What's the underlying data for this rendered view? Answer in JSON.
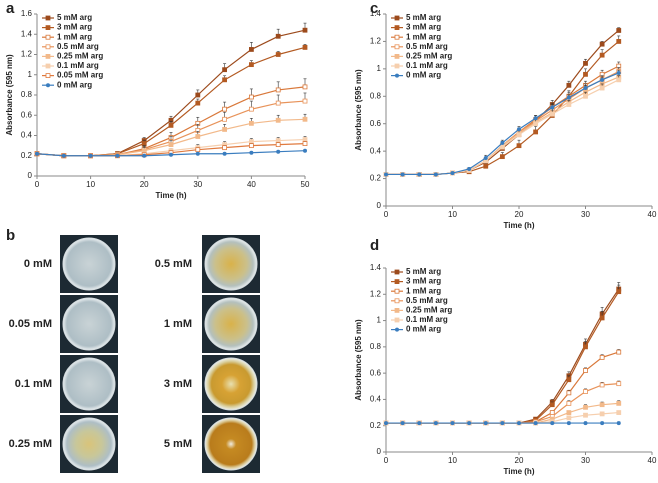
{
  "chart_data": [
    {
      "type": "line",
      "panel_label": "a",
      "x_label": "Time (h)",
      "y_label": "Absorbance (595 nm)",
      "xlim": [
        0,
        50
      ],
      "xticks": [
        0,
        10,
        20,
        30,
        40,
        50
      ],
      "ylim": [
        0,
        1.6
      ],
      "yticks": [
        0,
        0.2,
        0.4,
        0.6,
        0.8,
        1,
        1.2,
        1.4,
        1.6
      ],
      "x": [
        0,
        5,
        10,
        15,
        20,
        25,
        30,
        35,
        40,
        45,
        50
      ],
      "series": [
        {
          "name": "5 mM arg",
          "color": "#9c4a1c",
          "marker": "square",
          "values": [
            0.22,
            0.2,
            0.2,
            0.22,
            0.35,
            0.55,
            0.8,
            1.05,
            1.25,
            1.38,
            1.44
          ],
          "errors": [
            0.01,
            0.01,
            0.01,
            0.02,
            0.03,
            0.04,
            0.05,
            0.06,
            0.07,
            0.07,
            0.07
          ]
        },
        {
          "name": "3 mM arg",
          "color": "#b35a22",
          "marker": "square",
          "values": [
            0.22,
            0.2,
            0.2,
            0.22,
            0.32,
            0.5,
            0.72,
            0.95,
            1.1,
            1.2,
            1.27
          ],
          "errors": [
            0.01,
            0.01,
            0.01,
            0.02,
            0.03,
            0.04,
            0.04,
            0.04,
            0.04,
            0.03,
            0.03
          ]
        },
        {
          "name": "1 mM arg",
          "color": "#d9783a",
          "marker": "open-square",
          "values": [
            0.22,
            0.2,
            0.2,
            0.21,
            0.27,
            0.38,
            0.52,
            0.66,
            0.78,
            0.85,
            0.88
          ],
          "errors": [
            0.01,
            0.01,
            0.01,
            0.02,
            0.03,
            0.05,
            0.06,
            0.07,
            0.08,
            0.08,
            0.08
          ]
        },
        {
          "name": "0.5 mM arg",
          "color": "#e8935a",
          "marker": "open-square",
          "values": [
            0.22,
            0.2,
            0.2,
            0.21,
            0.26,
            0.34,
            0.45,
            0.56,
            0.66,
            0.72,
            0.74
          ],
          "errors": [
            0.01,
            0.01,
            0.01,
            0.02,
            0.03,
            0.05,
            0.06,
            0.07,
            0.08,
            0.08,
            0.08
          ]
        },
        {
          "name": "0.25 mM arg",
          "color": "#f2b98a",
          "marker": "square",
          "values": [
            0.22,
            0.2,
            0.2,
            0.21,
            0.25,
            0.31,
            0.39,
            0.46,
            0.52,
            0.55,
            0.56
          ],
          "errors": [
            0.01,
            0.01,
            0.01,
            0.02,
            0.03,
            0.04,
            0.05,
            0.05,
            0.05,
            0.05,
            0.05
          ]
        },
        {
          "name": "0.1 mM arg",
          "color": "#f6cfae",
          "marker": "square",
          "values": [
            0.22,
            0.2,
            0.2,
            0.2,
            0.22,
            0.25,
            0.28,
            0.31,
            0.34,
            0.35,
            0.36
          ],
          "errors": [
            0.01,
            0.01,
            0.01,
            0.01,
            0.02,
            0.02,
            0.03,
            0.03,
            0.03,
            0.03,
            0.03
          ]
        },
        {
          "name": "0.05 mM arg",
          "color": "#e07a3e",
          "marker": "open-square",
          "values": [
            0.22,
            0.2,
            0.2,
            0.2,
            0.21,
            0.23,
            0.26,
            0.28,
            0.3,
            0.31,
            0.32
          ],
          "errors": [
            0.01,
            0.01,
            0.01,
            0.01,
            0.01,
            0.02,
            0.02,
            0.02,
            0.02,
            0.02,
            0.02
          ]
        },
        {
          "name": "0 mM arg",
          "color": "#3a7dbf",
          "marker": "circle",
          "values": [
            0.22,
            0.2,
            0.2,
            0.2,
            0.2,
            0.21,
            0.22,
            0.22,
            0.23,
            0.24,
            0.25
          ],
          "errors": [
            0.01,
            0.01,
            0.01,
            0.01,
            0.01,
            0.01,
            0.01,
            0.01,
            0.01,
            0.01,
            0.01
          ]
        }
      ]
    },
    {
      "type": "line",
      "panel_label": "c",
      "x_label": "Time (h)",
      "y_label": "Absorbance (595 nm)",
      "xlim": [
        0,
        40
      ],
      "xticks": [
        0,
        10,
        20,
        30,
        40
      ],
      "ylim": [
        0,
        1.4
      ],
      "yticks": [
        0,
        0.2,
        0.4,
        0.6,
        0.8,
        1,
        1.2,
        1.4
      ],
      "x": [
        0,
        2.5,
        5,
        7.5,
        10,
        12.5,
        15,
        17.5,
        20,
        22.5,
        25,
        27.5,
        30,
        32.5,
        35
      ],
      "series": [
        {
          "name": "5 mM arg",
          "color": "#9c4a1c",
          "marker": "square",
          "values": [
            0.23,
            0.23,
            0.23,
            0.23,
            0.24,
            0.26,
            0.32,
            0.42,
            0.52,
            0.62,
            0.74,
            0.88,
            1.04,
            1.18,
            1.28
          ],
          "errors": [
            0.01,
            0.01,
            0.01,
            0.01,
            0.01,
            0.01,
            0.02,
            0.03,
            0.03,
            0.03,
            0.03,
            0.03,
            0.03,
            0.02,
            0.02
          ]
        },
        {
          "name": "3 mM arg",
          "color": "#b35a22",
          "marker": "square",
          "values": [
            0.23,
            0.23,
            0.23,
            0.23,
            0.24,
            0.25,
            0.29,
            0.36,
            0.44,
            0.54,
            0.66,
            0.8,
            0.96,
            1.1,
            1.2
          ],
          "errors": [
            0.01,
            0.01,
            0.01,
            0.01,
            0.01,
            0.01,
            0.02,
            0.03,
            0.04,
            0.04,
            0.04,
            0.04,
            0.04,
            0.04,
            0.04
          ]
        },
        {
          "name": "1 mM arg",
          "color": "#d9783a",
          "marker": "open-square",
          "values": [
            0.23,
            0.23,
            0.23,
            0.23,
            0.24,
            0.26,
            0.33,
            0.44,
            0.54,
            0.63,
            0.72,
            0.8,
            0.88,
            0.96,
            1.02
          ],
          "errors": [
            0.01,
            0.01,
            0.01,
            0.01,
            0.01,
            0.01,
            0.02,
            0.03,
            0.03,
            0.03,
            0.03,
            0.03,
            0.03,
            0.03,
            0.03
          ]
        },
        {
          "name": "0.5 mM arg",
          "color": "#e8935a",
          "marker": "open-square",
          "values": [
            0.23,
            0.23,
            0.23,
            0.23,
            0.24,
            0.26,
            0.33,
            0.44,
            0.54,
            0.62,
            0.7,
            0.78,
            0.86,
            0.92,
            0.98
          ],
          "errors": [
            0.01,
            0.01,
            0.01,
            0.01,
            0.01,
            0.01,
            0.02,
            0.03,
            0.03,
            0.03,
            0.03,
            0.03,
            0.03,
            0.03,
            0.03
          ]
        },
        {
          "name": "0.25 mM arg",
          "color": "#f2b98a",
          "marker": "square",
          "values": [
            0.23,
            0.23,
            0.23,
            0.23,
            0.24,
            0.26,
            0.33,
            0.44,
            0.53,
            0.61,
            0.68,
            0.76,
            0.83,
            0.89,
            0.94
          ],
          "errors": [
            0.01,
            0.01,
            0.01,
            0.01,
            0.01,
            0.01,
            0.02,
            0.03,
            0.03,
            0.03,
            0.03,
            0.03,
            0.03,
            0.03,
            0.03
          ]
        },
        {
          "name": "0.1 mM arg",
          "color": "#f6cfae",
          "marker": "square",
          "values": [
            0.23,
            0.23,
            0.23,
            0.23,
            0.24,
            0.26,
            0.33,
            0.43,
            0.52,
            0.6,
            0.67,
            0.74,
            0.8,
            0.86,
            0.92
          ],
          "errors": [
            0.01,
            0.01,
            0.01,
            0.01,
            0.01,
            0.01,
            0.02,
            0.03,
            0.03,
            0.03,
            0.03,
            0.03,
            0.03,
            0.03,
            0.03
          ]
        },
        {
          "name": "0 mM arg",
          "color": "#3a7dbf",
          "marker": "circle",
          "values": [
            0.23,
            0.23,
            0.23,
            0.23,
            0.24,
            0.27,
            0.35,
            0.46,
            0.56,
            0.64,
            0.72,
            0.79,
            0.86,
            0.92,
            0.97
          ],
          "errors": [
            0.01,
            0.01,
            0.01,
            0.01,
            0.01,
            0.01,
            0.02,
            0.02,
            0.02,
            0.02,
            0.02,
            0.02,
            0.02,
            0.02,
            0.02
          ]
        }
      ]
    },
    {
      "type": "line",
      "panel_label": "d",
      "x_label": "Time (h)",
      "y_label": "Absorbance (595 nm)",
      "xlim": [
        0,
        40
      ],
      "xticks": [
        0,
        10,
        20,
        30,
        40
      ],
      "ylim": [
        0,
        1.4
      ],
      "yticks": [
        0,
        0.2,
        0.4,
        0.6,
        0.8,
        1,
        1.2,
        1.4
      ],
      "x": [
        0,
        2.5,
        5,
        7.5,
        10,
        12.5,
        15,
        17.5,
        20,
        22.5,
        25,
        27.5,
        30,
        32.5,
        35
      ],
      "series": [
        {
          "name": "5 mM arg",
          "color": "#9c4a1c",
          "marker": "square",
          "values": [
            0.22,
            0.22,
            0.22,
            0.22,
            0.22,
            0.22,
            0.22,
            0.22,
            0.22,
            0.25,
            0.38,
            0.58,
            0.82,
            1.05,
            1.24
          ],
          "errors": [
            0.01,
            0.01,
            0.01,
            0.01,
            0.01,
            0.01,
            0.01,
            0.01,
            0.01,
            0.01,
            0.02,
            0.03,
            0.04,
            0.05,
            0.05
          ]
        },
        {
          "name": "3 mM arg",
          "color": "#b35a22",
          "marker": "square",
          "values": [
            0.22,
            0.22,
            0.22,
            0.22,
            0.22,
            0.22,
            0.22,
            0.22,
            0.22,
            0.24,
            0.36,
            0.55,
            0.8,
            1.02,
            1.22
          ],
          "errors": [
            0.01,
            0.01,
            0.01,
            0.01,
            0.01,
            0.01,
            0.01,
            0.01,
            0.01,
            0.01,
            0.02,
            0.03,
            0.04,
            0.05,
            0.05
          ]
        },
        {
          "name": "1 mM arg",
          "color": "#d9783a",
          "marker": "open-square",
          "values": [
            0.22,
            0.22,
            0.22,
            0.22,
            0.22,
            0.22,
            0.22,
            0.22,
            0.22,
            0.23,
            0.3,
            0.45,
            0.62,
            0.72,
            0.76
          ],
          "errors": [
            0.01,
            0.01,
            0.01,
            0.01,
            0.01,
            0.01,
            0.01,
            0.01,
            0.01,
            0.01,
            0.01,
            0.02,
            0.02,
            0.02,
            0.02
          ]
        },
        {
          "name": "0.5 mM arg",
          "color": "#e8935a",
          "marker": "open-square",
          "values": [
            0.22,
            0.22,
            0.22,
            0.22,
            0.22,
            0.22,
            0.22,
            0.22,
            0.22,
            0.23,
            0.27,
            0.37,
            0.46,
            0.51,
            0.52
          ],
          "errors": [
            0.01,
            0.01,
            0.01,
            0.01,
            0.01,
            0.01,
            0.01,
            0.01,
            0.01,
            0.01,
            0.01,
            0.02,
            0.02,
            0.02,
            0.02
          ]
        },
        {
          "name": "0.25 mM arg",
          "color": "#f2b98a",
          "marker": "square",
          "values": [
            0.22,
            0.22,
            0.22,
            0.22,
            0.22,
            0.22,
            0.22,
            0.22,
            0.22,
            0.22,
            0.25,
            0.3,
            0.34,
            0.36,
            0.37
          ],
          "errors": [
            0.01,
            0.01,
            0.01,
            0.01,
            0.01,
            0.01,
            0.01,
            0.01,
            0.01,
            0.01,
            0.01,
            0.01,
            0.02,
            0.02,
            0.02
          ]
        },
        {
          "name": "0.1 mM arg",
          "color": "#f6cfae",
          "marker": "square",
          "values": [
            0.22,
            0.22,
            0.22,
            0.22,
            0.22,
            0.22,
            0.22,
            0.22,
            0.22,
            0.22,
            0.23,
            0.26,
            0.28,
            0.29,
            0.3
          ],
          "errors": [
            0.01,
            0.01,
            0.01,
            0.01,
            0.01,
            0.01,
            0.01,
            0.01,
            0.01,
            0.01,
            0.01,
            0.01,
            0.01,
            0.01,
            0.01
          ]
        },
        {
          "name": "0 mM arg",
          "color": "#3a7dbf",
          "marker": "circle",
          "values": [
            0.22,
            0.22,
            0.22,
            0.22,
            0.22,
            0.22,
            0.22,
            0.22,
            0.22,
            0.22,
            0.22,
            0.22,
            0.22,
            0.22,
            0.22
          ],
          "errors": [
            0.01,
            0.01,
            0.01,
            0.01,
            0.01,
            0.01,
            0.01,
            0.01,
            0.01,
            0.01,
            0.01,
            0.01,
            0.01,
            0.01,
            0.01
          ]
        }
      ]
    }
  ],
  "plates": {
    "panel_label": "b",
    "labels": [
      "0 mM",
      "0.05 mM",
      "0.1 mM",
      "0.25 mM",
      "0.5 mM",
      "1 mM",
      "3 mM",
      "5 mM"
    ]
  }
}
